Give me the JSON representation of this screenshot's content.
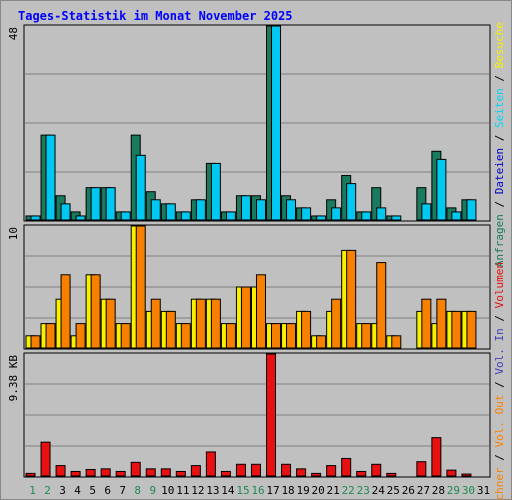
{
  "title": "Tages-Statistik im Monat November 2025",
  "colors": {
    "title": "#0000ff",
    "background": "#c0c0c0",
    "anfragen": "#1a7a5e",
    "dateien": "#00c8f0",
    "seiten": "#00d8f8",
    "besuche": "#f8f000",
    "rechner": "#f88000",
    "out": "#ff8000",
    "volumen": "#e81010",
    "weekday_label": "#000000",
    "weekend_label": "#1f8a4f"
  },
  "chart_data": [
    {
      "type": "bar",
      "name": "hits-files",
      "ytick": "48",
      "ylim": [
        0,
        48
      ],
      "categories": [
        "1",
        "2",
        "3",
        "4",
        "5",
        "6",
        "7",
        "8",
        "9",
        "10",
        "11",
        "12",
        "13",
        "14",
        "15",
        "16",
        "17",
        "18",
        "19",
        "20",
        "21",
        "22",
        "23",
        "24",
        "25",
        "26",
        "27",
        "28",
        "29",
        "30",
        "31"
      ],
      "series": [
        {
          "name": "Anfragen",
          "color": "#1a7a5e",
          "values": [
            1,
            21,
            6,
            2,
            8,
            8,
            2,
            21,
            7,
            4,
            2,
            5,
            14,
            2,
            6,
            6,
            48,
            6,
            3,
            1,
            5,
            11,
            2,
            8,
            1,
            0,
            8,
            17,
            3,
            5,
            0
          ]
        },
        {
          "name": "Dateien",
          "color": "#00c8f0",
          "values": [
            1,
            21,
            4,
            1,
            8,
            8,
            2,
            16,
            5,
            4,
            2,
            5,
            14,
            2,
            6,
            5,
            48,
            5,
            3,
            1,
            3,
            9,
            2,
            3,
            1,
            0,
            4,
            15,
            2,
            5,
            0
          ]
        }
      ]
    },
    {
      "type": "bar",
      "name": "visits-sites",
      "ytick": "10",
      "ylim": [
        0,
        10
      ],
      "series": [
        {
          "name": "Besuche",
          "color": "#f8f000",
          "values": [
            1,
            2,
            4,
            1,
            6,
            4,
            2,
            10,
            3,
            3,
            2,
            4,
            4,
            2,
            5,
            5,
            2,
            2,
            3,
            1,
            3,
            8,
            2,
            2,
            1,
            0,
            3,
            2,
            3,
            3,
            0
          ]
        },
        {
          "name": "Rechner",
          "color": "#f88000",
          "values": [
            1,
            2,
            6,
            2,
            6,
            4,
            2,
            10,
            4,
            3,
            2,
            4,
            4,
            2,
            5,
            6,
            2,
            2,
            3,
            1,
            4,
            8,
            2,
            7,
            1,
            0,
            4,
            4,
            3,
            3,
            0
          ]
        }
      ]
    },
    {
      "type": "bar",
      "name": "volume",
      "ytick": "9.38 KB",
      "ylim": [
        0,
        9.38
      ],
      "series": [
        {
          "name": "Volumen",
          "color": "#e81010",
          "values": [
            0.2,
            2.6,
            0.8,
            0.35,
            0.5,
            0.55,
            0.35,
            1.05,
            0.55,
            0.55,
            0.35,
            0.8,
            1.85,
            0.35,
            0.9,
            0.9,
            9.38,
            0.9,
            0.55,
            0.2,
            0.8,
            1.35,
            0.35,
            0.9,
            0.2,
            0,
            1.1,
            2.95,
            0.45,
            0.15,
            0
          ]
        }
      ]
    }
  ],
  "right_label_1": [
    {
      "text": "Anfragen",
      "color": "#1a7a5e"
    },
    {
      "text": " / ",
      "color": "#000000"
    },
    {
      "text": "Dateien",
      "color": "#0000c8"
    },
    {
      "text": " / ",
      "color": "#000000"
    },
    {
      "text": "Seiten",
      "color": "#00d8f8"
    },
    {
      "text": " / ",
      "color": "#000000"
    },
    {
      "text": "Besuche",
      "color": "#f8f000"
    }
  ],
  "right_label_2": [
    {
      "text": "Rechner",
      "color": "#f88000"
    },
    {
      "text": " / ",
      "color": "#000000"
    },
    {
      "text": "Vol. Out",
      "color": "#ff8000"
    },
    {
      "text": " / ",
      "color": "#000000"
    },
    {
      "text": "Vol. In",
      "color": "#4040c0"
    },
    {
      "text": " / ",
      "color": "#000000"
    },
    {
      "text": "Volumen",
      "color": "#e81010"
    }
  ],
  "weekend_days": [
    "1",
    "2",
    "8",
    "9",
    "15",
    "16",
    "22",
    "23",
    "29",
    "30"
  ]
}
